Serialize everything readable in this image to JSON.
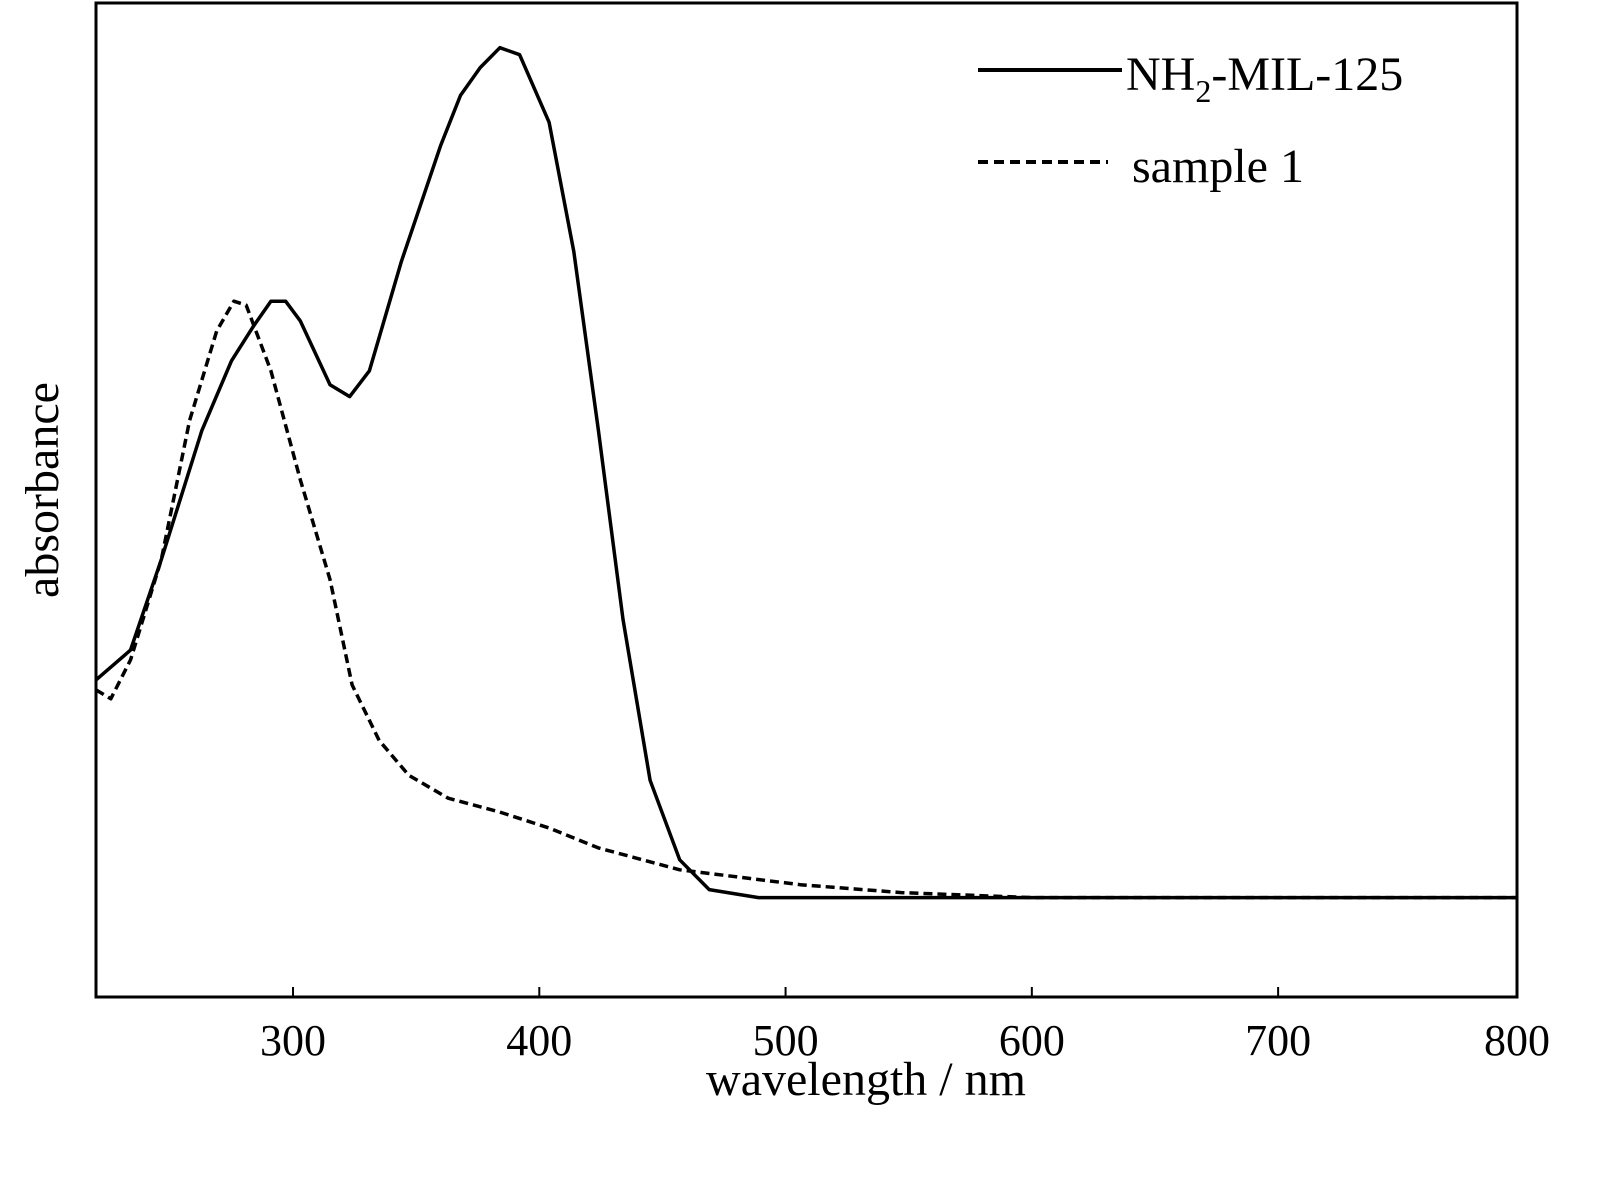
{
  "chart_data": {
    "type": "line",
    "title": "",
    "xlabel": "wavelength / nm",
    "ylabel": "absorbance",
    "xlim": [
      220,
      797
    ],
    "ylim": [
      0,
      1
    ],
    "x_ticks": [
      300,
      400,
      500,
      600,
      700,
      800
    ],
    "x_tick_labels": [
      "300",
      "400",
      "500",
      "600",
      "700",
      "800"
    ],
    "y_ticks": [],
    "grid": false,
    "legend_position": "top-right",
    "series": [
      {
        "name": "NH2-MIL-125",
        "name_parts": [
          "NH",
          "2",
          "-MIL-125"
        ],
        "style": "solid",
        "color": "#000000",
        "x": [
          220,
          234,
          246.5,
          263,
          275,
          284,
          291,
          297,
          303,
          315,
          323,
          331,
          344,
          360,
          368,
          376,
          384,
          392,
          404,
          414,
          424,
          434,
          445,
          457,
          469,
          489,
          600,
          700,
          797
        ],
        "y": [
          0.319,
          0.349,
          0.44,
          0.57,
          0.64,
          0.675,
          0.7,
          0.7,
          0.68,
          0.616,
          0.604,
          0.63,
          0.74,
          0.857,
          0.907,
          0.935,
          0.955,
          0.948,
          0.88,
          0.75,
          0.57,
          0.38,
          0.218,
          0.138,
          0.108,
          0.1,
          0.1,
          0.1,
          0.1
        ]
      },
      {
        "name": "sample 1",
        "style": "dashed",
        "color": "#000000",
        "x": [
          220,
          226,
          234,
          246.5,
          258,
          269,
          276,
          281,
          291,
          303,
          315,
          324,
          335,
          347,
          363,
          384,
          404,
          424,
          457,
          506,
          547,
          600,
          700,
          797
        ],
        "y": [
          0.309,
          0.3,
          0.339,
          0.44,
          0.58,
          0.67,
          0.7,
          0.696,
          0.63,
          0.52,
          0.42,
          0.314,
          0.258,
          0.223,
          0.2,
          0.186,
          0.17,
          0.15,
          0.128,
          0.113,
          0.105,
          0.1,
          0.1,
          0.1
        ]
      }
    ]
  }
}
